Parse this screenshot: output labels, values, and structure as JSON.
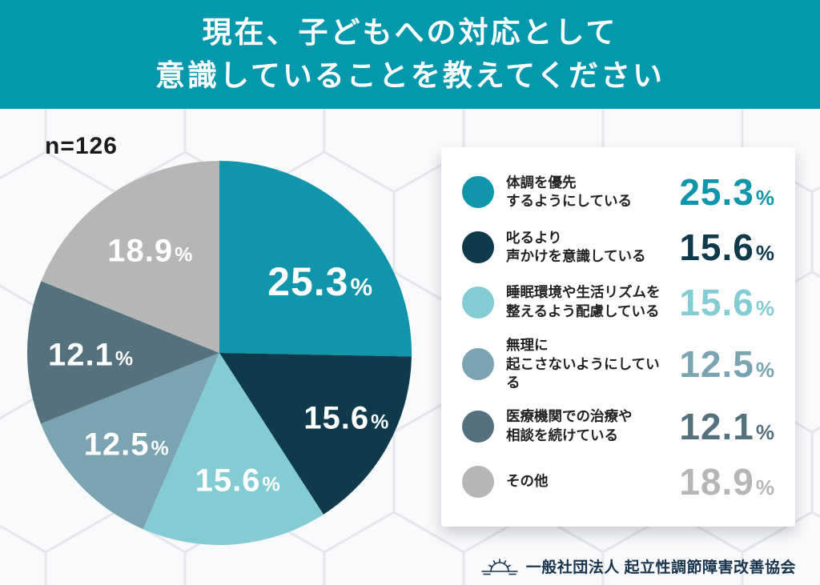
{
  "header": {
    "line1": "現在、子どもへの対応として",
    "line2": "意識していることを教えてください"
  },
  "sample_label": "n=126",
  "chart_data": {
    "type": "pie",
    "title": "現在、子どもへの対応として意識していることを教えてください",
    "sample_size": "n=126",
    "unit": "%",
    "start_angle_deg": 0,
    "direction": "clockwise",
    "legend_position": "right",
    "slices": [
      {
        "label": "体調を優先するようにしている",
        "value": 25.3,
        "display": "25.3",
        "color": "#1095aa"
      },
      {
        "label": "叱るより声かけを意識している",
        "value": 15.6,
        "display": "15.6",
        "color": "#0e3a4c"
      },
      {
        "label": "睡眠環境や生活リズムを整えるよう配慮している",
        "value": 15.6,
        "display": "15.6",
        "color": "#84ccd4"
      },
      {
        "label": "無理に起こさないようにしている",
        "value": 12.5,
        "display": "12.5",
        "color": "#7ba4b2"
      },
      {
        "label": "医療機関での治療や相談を続けている",
        "value": 12.1,
        "display": "12.1",
        "color": "#54717d"
      },
      {
        "label": "その他",
        "value": 18.9,
        "display": "18.9",
        "color": "#b6b6b7"
      }
    ]
  },
  "legend": {
    "unit": "%",
    "items": [
      {
        "label_line1": "体調を優先",
        "label_line2": "するようにしている",
        "value": "25.3",
        "color": "#1095aa"
      },
      {
        "label_line1": "叱るより",
        "label_line2": "声かけを意識している",
        "value": "15.6",
        "color": "#0e3a4c"
      },
      {
        "label_line1": "睡眠環境や生活リズムを",
        "label_line2": "整えるよう配慮している",
        "value": "15.6",
        "color": "#84ccd4"
      },
      {
        "label_line1": "無理に",
        "label_line2": "起こさないようにしている",
        "value": "12.5",
        "color": "#7ba4b2"
      },
      {
        "label_line1": "医療機関での治療や",
        "label_line2": "相談を続けている",
        "value": "12.1",
        "color": "#54717d"
      },
      {
        "label_line1": "その他",
        "label_line2": "",
        "value": "18.9",
        "color": "#b6b6b7"
      }
    ]
  },
  "footer": {
    "org": "一般社団法人 起立性調節障害改善協会"
  },
  "colors": {
    "header_bg": "#0498ad",
    "page_bg": "#f2f3f5",
    "hex_stroke": "#e2e4e8",
    "footer_text": "#17334d",
    "pie_label_text": "#ffffff"
  }
}
